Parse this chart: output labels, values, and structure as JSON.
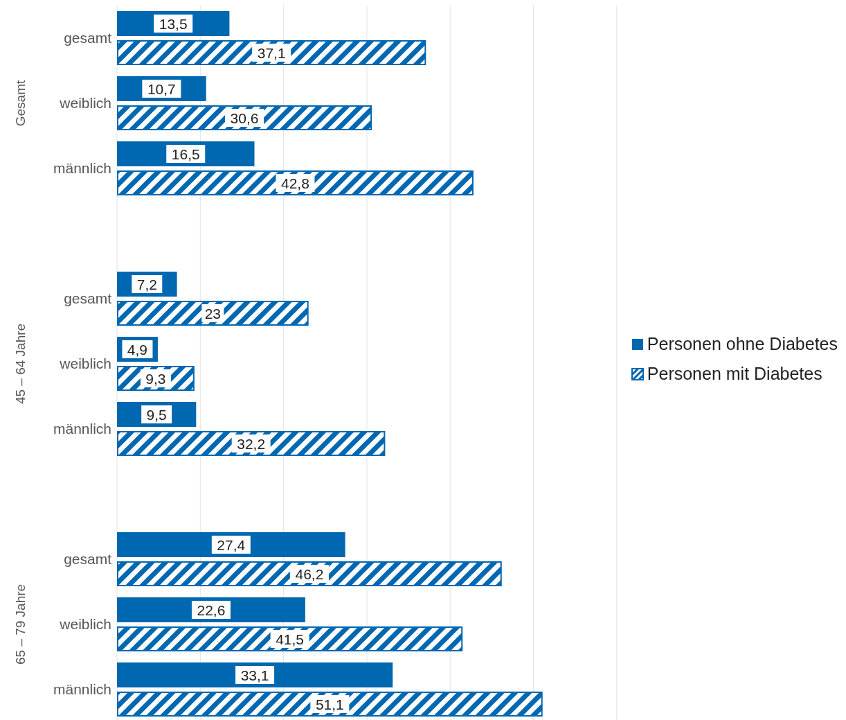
{
  "chart_data": {
    "type": "bar",
    "orientation": "horizontal",
    "categories": [
      "gesamt",
      "weiblich",
      "männlich",
      null,
      "gesamt",
      "weiblich",
      "männlich",
      null,
      "gesamt",
      "weiblich",
      "männlich"
    ],
    "series": [
      {
        "name": "Personen ohne Diabetes",
        "color": "#0067b1",
        "values": [
          13.5,
          10.7,
          16.5,
          null,
          7.2,
          4.9,
          9.5,
          null,
          27.4,
          22.6,
          33.1
        ],
        "value_labels": [
          "13,5",
          "10,7",
          "16,5",
          null,
          "7,2",
          "4,9",
          "9,5",
          null,
          "27,4",
          "22,6",
          "33,1"
        ]
      },
      {
        "name": "Personen mit Diabetes",
        "color": "#0067b1",
        "values": [
          37.1,
          30.6,
          42.8,
          null,
          23,
          9.3,
          32.2,
          null,
          46.2,
          41.5,
          51.1
        ],
        "value_labels": [
          "37,1",
          "30,6",
          "42,8",
          null,
          "23",
          "9,3",
          "32,2",
          null,
          "46,2",
          "41,5",
          "51,1"
        ]
      }
    ],
    "annotations": [
      "Gesamt",
      "45 – 64 Jahre",
      "65 – 79 Jahre"
    ],
    "xlim": [
      0,
      60
    ],
    "xticks": [
      {
        "value": 0,
        "label": null
      },
      {
        "value": 10,
        "label": null
      },
      {
        "value": 20,
        "label": null
      },
      {
        "value": 30,
        "label": null
      },
      {
        "value": 40,
        "label": null
      },
      {
        "value": 50,
        "label": null
      },
      {
        "value": 60,
        "label": null
      }
    ],
    "tick_labels": "y",
    "grid": "x",
    "legend": "right"
  }
}
